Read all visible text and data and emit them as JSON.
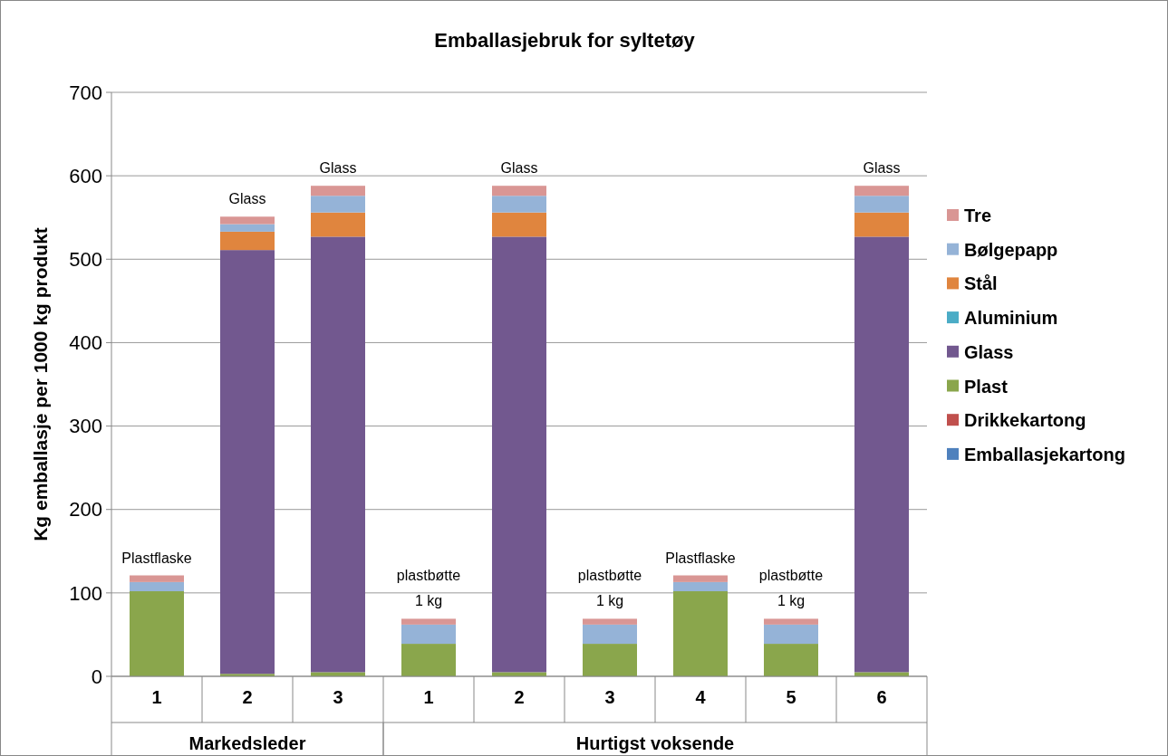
{
  "chart_data": {
    "type": "bar",
    "title": "Emballasjebruk for syltetøy",
    "ylabel": "Kg emballasje per 1000 kg produkt",
    "categories": [
      "1",
      "2",
      "3",
      "1",
      "2",
      "3",
      "4",
      "5",
      "6"
    ],
    "annotations": [
      "Markedsleder",
      "Hurtigst voksende"
    ],
    "stacked": true,
    "ylim": [
      0,
      700
    ],
    "yticks": [
      0,
      100,
      200,
      300,
      400,
      500,
      600,
      700
    ],
    "grid": "y",
    "legend": "right",
    "series": [
      {
        "name": "Emballasjekartong",
        "color": "#4f81bd",
        "values": [
          0,
          0,
          0,
          0,
          0,
          0,
          0,
          0,
          0
        ]
      },
      {
        "name": "Drikkekartong",
        "color": "#c0504d",
        "values": [
          0,
          0,
          0,
          0,
          0,
          0,
          0,
          0,
          0
        ]
      },
      {
        "name": "Plast",
        "color": "#8aa64c",
        "values": [
          102,
          3,
          5,
          39,
          5,
          39,
          102,
          39,
          5
        ]
      },
      {
        "name": "Glass",
        "color": "#72588f",
        "values": [
          0,
          508,
          522,
          0,
          522,
          0,
          0,
          0,
          522
        ]
      },
      {
        "name": "Aluminium",
        "color": "#4bacc6",
        "values": [
          0,
          0,
          0,
          0,
          0,
          0,
          0,
          0,
          0
        ]
      },
      {
        "name": "Stål",
        "color": "#e0853e",
        "values": [
          0,
          22,
          29,
          0,
          29,
          0,
          0,
          0,
          29
        ]
      },
      {
        "name": "Bølgepapp",
        "color": "#95b3d7",
        "values": [
          11,
          9,
          20,
          23,
          20,
          23,
          11,
          23,
          20
        ]
      },
      {
        "name": "Tre",
        "color": "#d99694",
        "values": [
          8,
          9,
          12,
          7,
          12,
          7,
          8,
          7,
          12
        ],
        "value_labels": [
          "Plastflaske",
          "Glass",
          "Glass",
          "plastbøtte\n1 kg",
          "Glass",
          "plastbøtte\n1 kg",
          "Plastflaske",
          "plastbøtte\n1 kg",
          "Glass"
        ]
      }
    ]
  }
}
